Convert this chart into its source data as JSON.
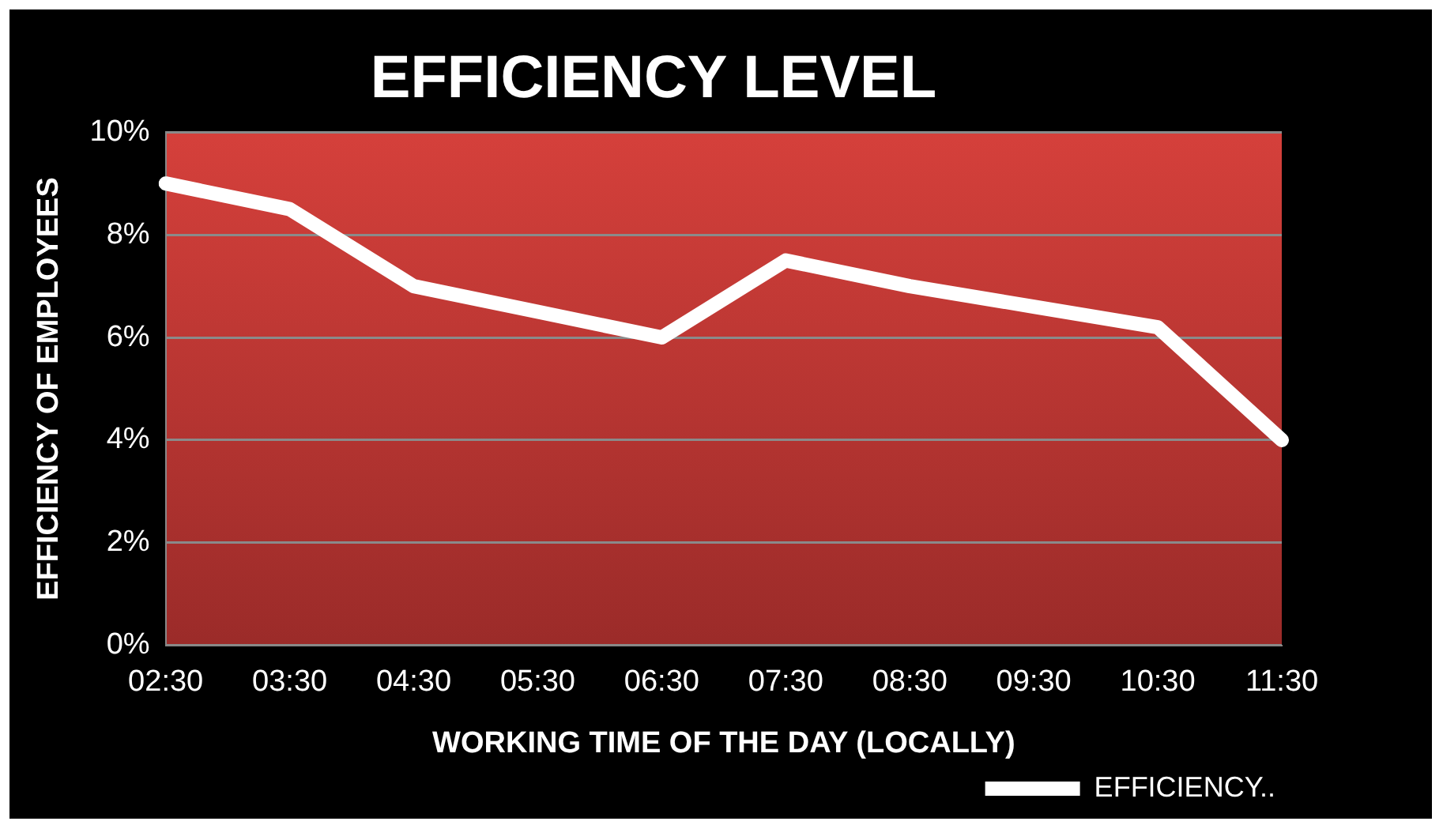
{
  "chart_data": {
    "type": "line",
    "title": "EFFICIENCY LEVEL",
    "xlabel": "WORKING TIME OF THE DAY (LOCALLY)",
    "ylabel": "EFFICIENCY OF EMPLOYEES",
    "categories": [
      "02:30",
      "03:30",
      "04:30",
      "05:30",
      "06:30",
      "07:30",
      "08:30",
      "09:30",
      "10:30",
      "11:30"
    ],
    "series": [
      {
        "name": "EFFICIENCY..",
        "color": "#ffffff",
        "values": [
          9.0,
          8.5,
          7.0,
          6.5,
          6.0,
          7.5,
          7.0,
          6.6,
          6.2,
          4.0
        ]
      }
    ],
    "ylim": [
      0,
      10
    ],
    "yticks": [
      {
        "value": 0,
        "label": "0%"
      },
      {
        "value": 2,
        "label": "2%"
      },
      {
        "value": 4,
        "label": "4%"
      },
      {
        "value": 6,
        "label": "6%"
      },
      {
        "value": 8,
        "label": "8%"
      },
      {
        "value": 10,
        "label": "10%"
      }
    ],
    "grid": "y",
    "legend": "bottom right",
    "marker": "none",
    "line_style": "solid"
  }
}
